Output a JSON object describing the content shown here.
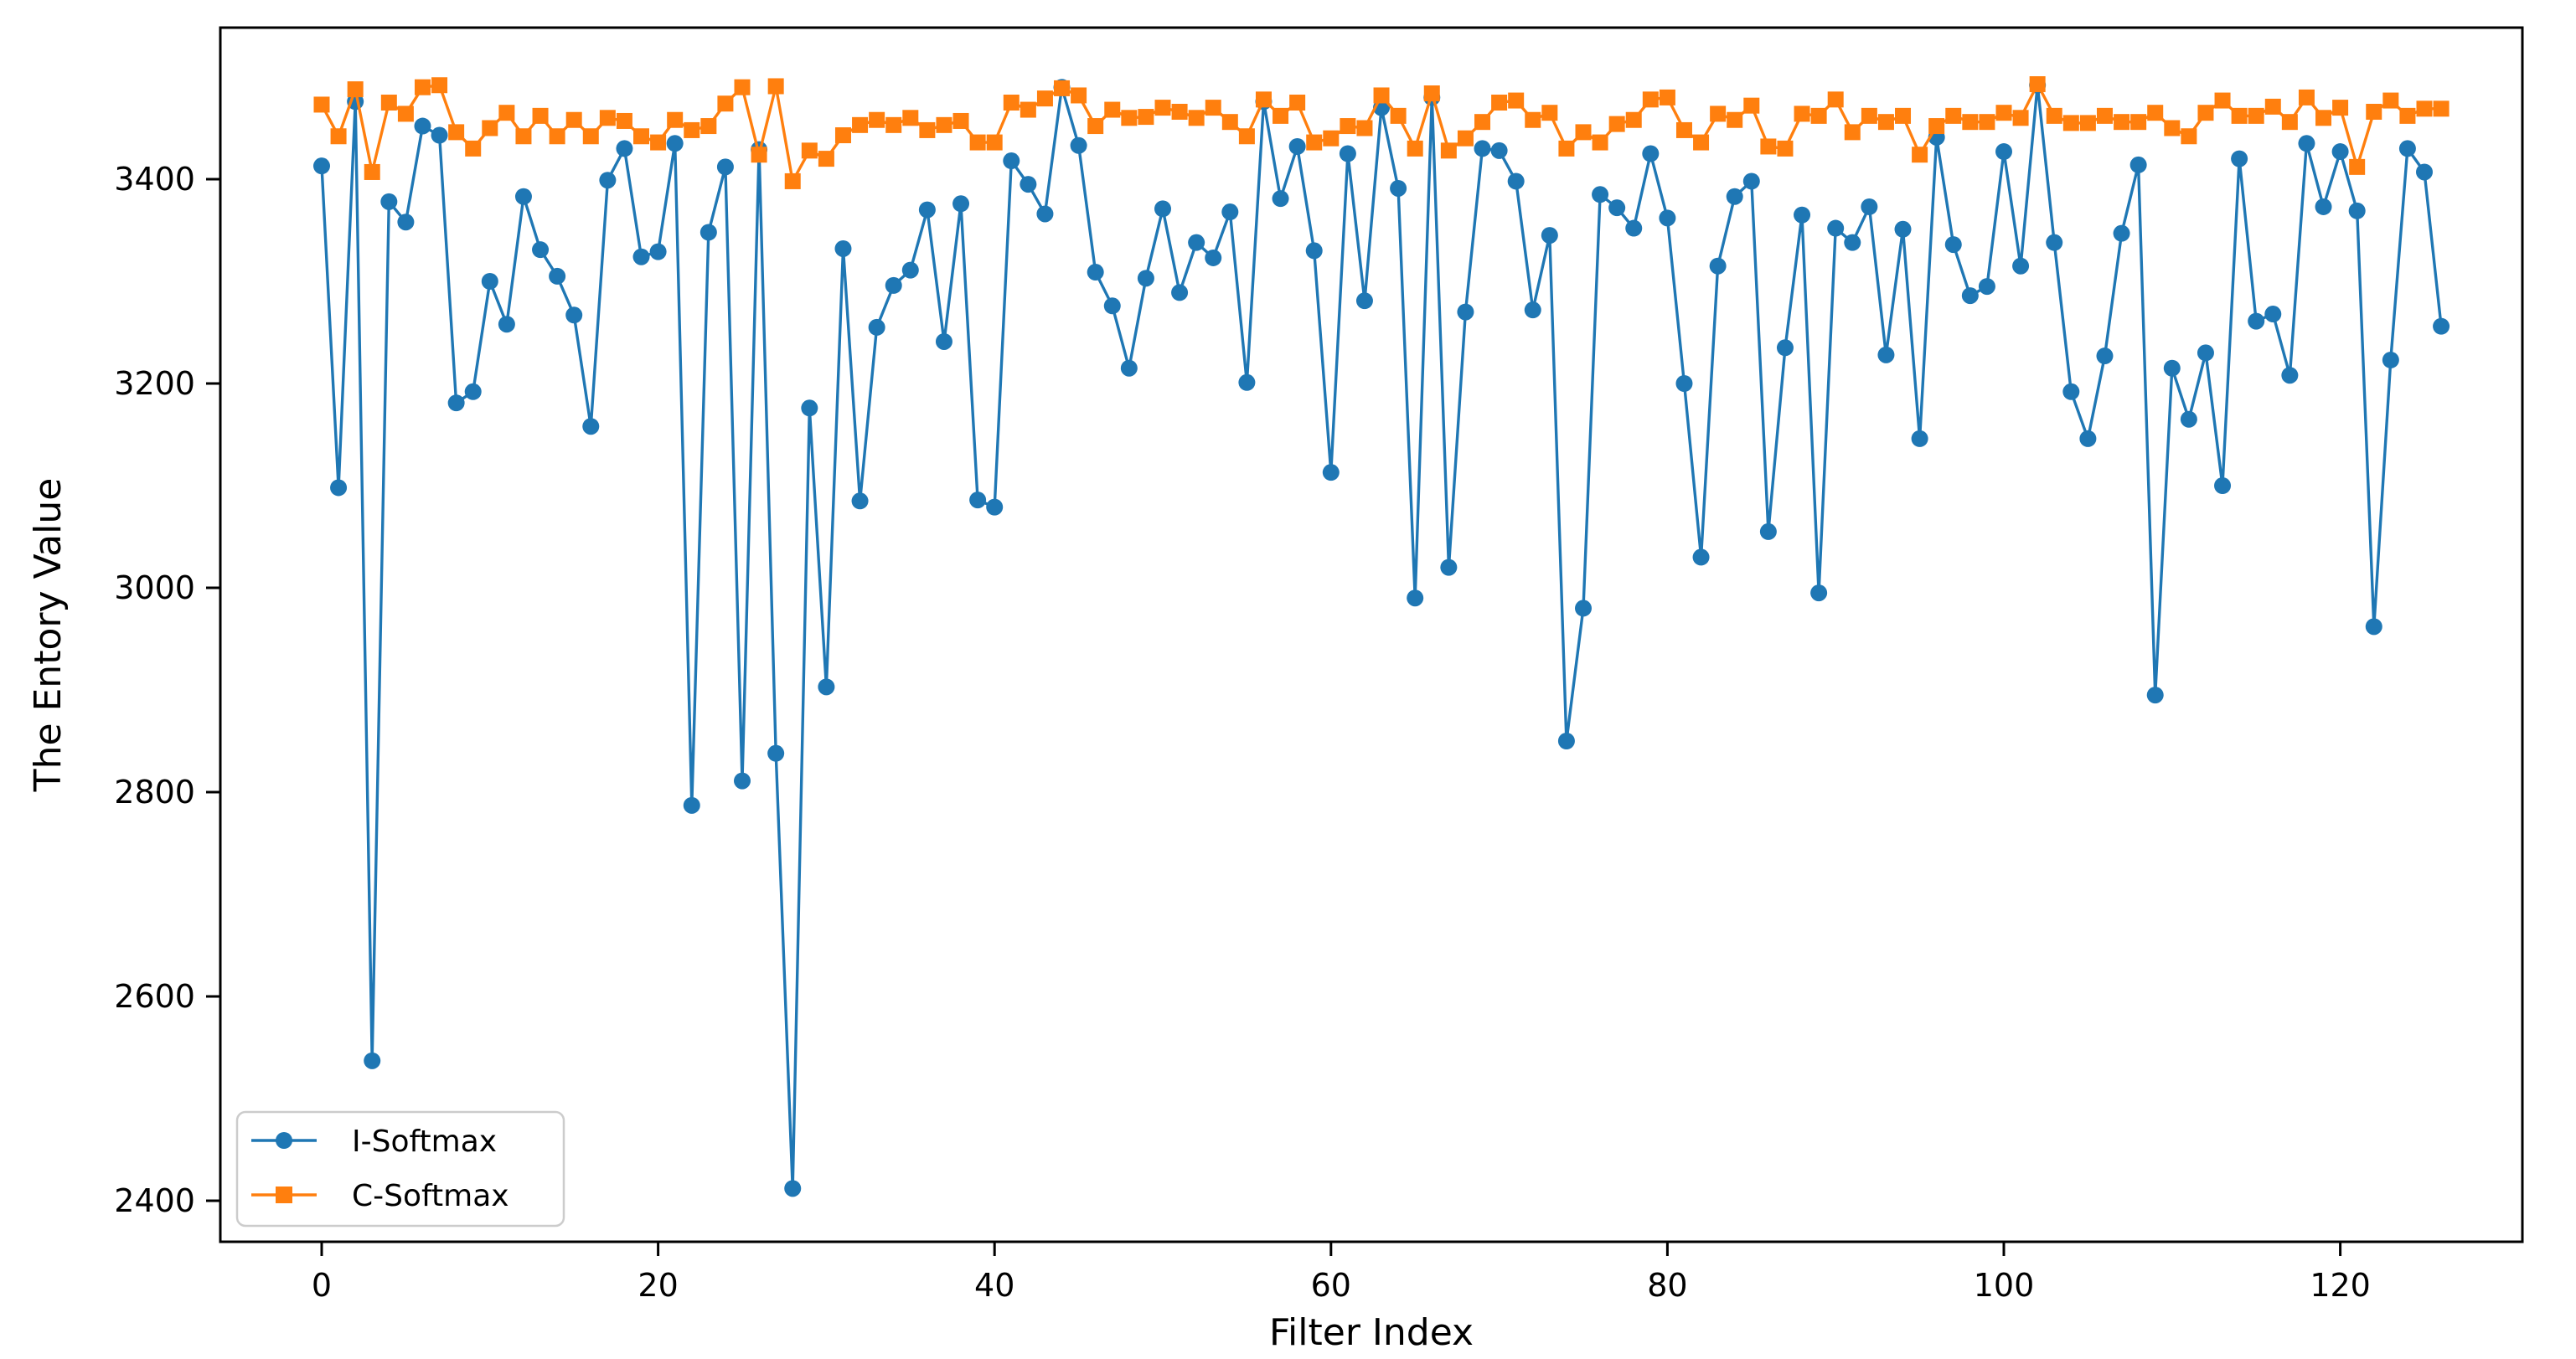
{
  "chart_data": {
    "type": "line",
    "title": "",
    "xlabel": "Filter Index",
    "ylabel": "The Entory Value",
    "x_ticks": [
      0,
      20,
      40,
      60,
      80,
      100,
      120
    ],
    "y_ticks": [
      2400,
      2600,
      2800,
      3000,
      3200,
      3400
    ],
    "xlim": [
      -6.3,
      130.8
    ],
    "ylim": [
      2358,
      3547
    ],
    "grid": false,
    "legend_position": "lower left",
    "x_start": 0,
    "x_step": 1,
    "n_points": 127,
    "series": [
      {
        "name": "I-Softmax",
        "color": "#1f77b4",
        "marker": "circle",
        "values": [
          3413,
          3098,
          3476,
          2537,
          3378,
          3358,
          3452,
          3443,
          3181,
          3192,
          3300,
          3258,
          3383,
          3331,
          3305,
          3267,
          3158,
          3399,
          3430,
          3324,
          3329,
          3435,
          2787,
          3348,
          3412,
          2811,
          3429,
          2838,
          2412,
          3176,
          2903,
          3332,
          3085,
          3255,
          3296,
          3311,
          3370,
          3241,
          3376,
          3086,
          3079,
          3418,
          3395,
          3366,
          3490,
          3433,
          3309,
          3276,
          3215,
          3303,
          3371,
          3289,
          3338,
          3323,
          3368,
          3201,
          3476,
          3381,
          3432,
          3330,
          3113,
          3425,
          3281,
          3470,
          3391,
          2990,
          3480,
          3020,
          3270,
          3430,
          3428,
          3398,
          3272,
          3345,
          2850,
          2980,
          3385,
          3372,
          3352,
          3425,
          3362,
          3200,
          3030,
          3315,
          3383,
          3398,
          3055,
          3235,
          3365,
          2995,
          3352,
          3338,
          3373,
          3228,
          3351,
          3146,
          3441,
          3336,
          3286,
          3295,
          3427,
          3315,
          3492,
          3338,
          3192,
          3146,
          3227,
          3347,
          3414,
          2895,
          3215,
          3165,
          3230,
          3100,
          3420,
          3261,
          3268,
          3208,
          3435,
          3373,
          3427,
          3369,
          2962,
          3223,
          3430,
          3407,
          3256
        ]
      },
      {
        "name": "C-Softmax",
        "color": "#ff7f0e",
        "marker": "square",
        "values": [
          3473,
          3442,
          3488,
          3407,
          3475,
          3464,
          3490,
          3492,
          3446,
          3430,
          3450,
          3465,
          3442,
          3462,
          3442,
          3458,
          3442,
          3460,
          3457,
          3442,
          3436,
          3458,
          3448,
          3452,
          3474,
          3490,
          3424,
          3491,
          3398,
          3428,
          3420,
          3443,
          3453,
          3458,
          3453,
          3460,
          3448,
          3453,
          3457,
          3436,
          3436,
          3475,
          3468,
          3479,
          3489,
          3482,
          3452,
          3468,
          3460,
          3461,
          3470,
          3466,
          3460,
          3470,
          3456,
          3442,
          3478,
          3462,
          3475,
          3436,
          3440,
          3452,
          3450,
          3482,
          3462,
          3430,
          3484,
          3428,
          3440,
          3456,
          3475,
          3477,
          3458,
          3465,
          3430,
          3446,
          3436,
          3454,
          3458,
          3478,
          3480,
          3448,
          3436,
          3464,
          3458,
          3472,
          3432,
          3430,
          3464,
          3462,
          3478,
          3446,
          3462,
          3456,
          3462,
          3424,
          3452,
          3462,
          3456,
          3456,
          3465,
          3460,
          3493,
          3462,
          3455,
          3455,
          3462,
          3456,
          3456,
          3465,
          3450,
          3442,
          3465,
          3477,
          3462,
          3462,
          3471,
          3456,
          3480,
          3460,
          3470,
          3412,
          3466,
          3477,
          3462,
          3469,
          3469
        ]
      }
    ]
  }
}
